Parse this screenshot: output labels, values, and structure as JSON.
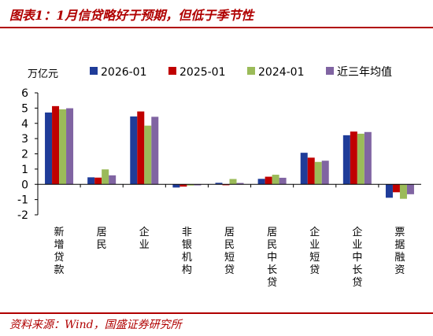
{
  "header": {
    "title": "图表1：1月信贷略好于预期，但低于季节性"
  },
  "footer": {
    "source": "资料来源：Wind，国盛证券研究所"
  },
  "chart_data": {
    "type": "bar",
    "unit_label": "万亿元",
    "categories": [
      "新增贷款",
      "居民",
      "企业",
      "非银机构",
      "居民短贷",
      "居民中长贷",
      "企业短贷",
      "企业中长贷",
      "票据融资"
    ],
    "series": [
      {
        "name": "2026-01",
        "color": "#1f3c99",
        "values": [
          4.71,
          0.46,
          4.45,
          -0.21,
          0.1,
          0.36,
          2.07,
          3.22,
          -0.88
        ]
      },
      {
        "name": "2025-01",
        "color": "#c00000",
        "values": [
          5.13,
          0.44,
          4.78,
          -0.15,
          -0.06,
          0.5,
          1.75,
          3.46,
          -0.52
        ]
      },
      {
        "name": "2024-01",
        "color": "#9bbb59",
        "values": [
          4.92,
          0.98,
          3.85,
          -0.08,
          0.35,
          0.63,
          1.47,
          3.32,
          -0.95
        ]
      },
      {
        "name": "近三年均值",
        "color": "#8064a2",
        "values": [
          4.99,
          0.59,
          4.43,
          -0.07,
          0.09,
          0.43,
          1.55,
          3.43,
          -0.65
        ]
      }
    ],
    "ylim": [
      -2,
      6
    ],
    "yticks": [
      6,
      5,
      4,
      3,
      2,
      1,
      0,
      -1,
      -2
    ],
    "legend_position": "top"
  }
}
